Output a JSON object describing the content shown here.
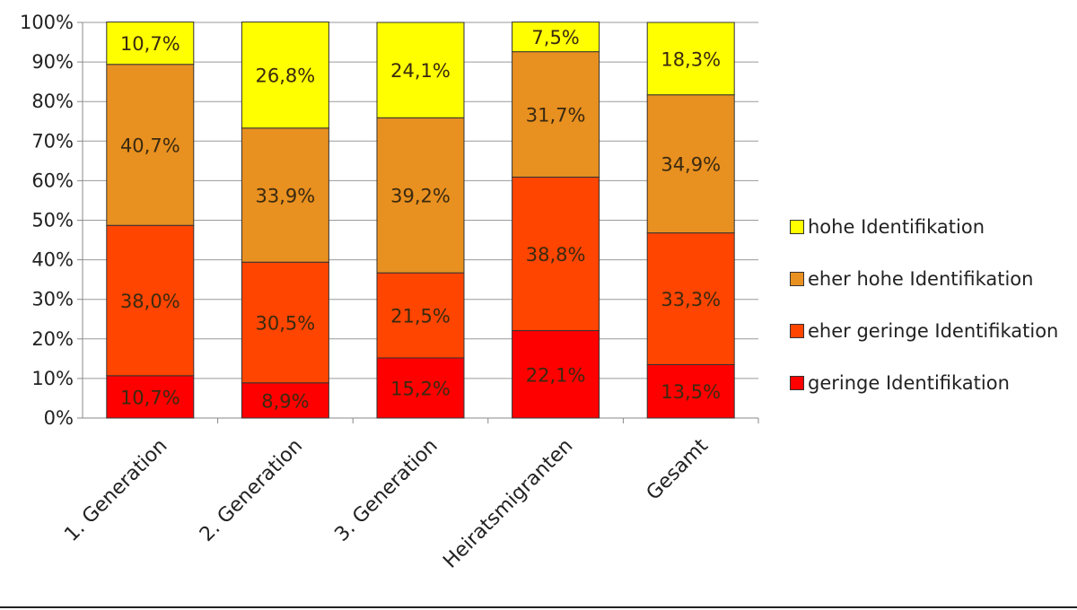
{
  "chart_data": {
    "type": "bar",
    "stacked": true,
    "categories": [
      "1. Generation",
      "2. Generation",
      "3.  Generation",
      "Heiratsmigranten",
      "Gesamt"
    ],
    "series": [
      {
        "name": "geringe Identifikation",
        "color": "#ff0000",
        "values": [
          10.7,
          8.9,
          15.2,
          22.1,
          13.5
        ],
        "labels": [
          "10,7%",
          "8,9%",
          "15,2%",
          "22,1%",
          "13,5%"
        ]
      },
      {
        "name": "eher geringe Identifikation",
        "color": "#ff4500",
        "values": [
          38.0,
          30.5,
          21.5,
          38.8,
          33.3
        ],
        "labels": [
          "38,0%",
          "30,5%",
          "21,5%",
          "38,8%",
          "33,3%"
        ]
      },
      {
        "name": "eher hohe Identifikation",
        "color": "#e89020",
        "values": [
          40.7,
          33.9,
          39.2,
          31.7,
          34.9
        ],
        "labels": [
          "40,7%",
          "33,9%",
          "39,2%",
          "31,7%",
          "34,9%"
        ]
      },
      {
        "name": "hohe Identifikation",
        "color": "#ffff00",
        "values": [
          10.7,
          26.8,
          24.1,
          7.5,
          18.3
        ],
        "labels": [
          "10,7%",
          "26,8%",
          "24,1%",
          "7,5%",
          "18,3%"
        ]
      }
    ],
    "y_ticks": [
      "0%",
      "10%",
      "20%",
      "30%",
      "40%",
      "50%",
      "60%",
      "70%",
      "80%",
      "90%",
      "100%"
    ],
    "ylim": [
      0,
      100
    ],
    "grid": true,
    "legend_position": "right",
    "legend_order": [
      "hohe Identifikation",
      "eher hohe Identifikation",
      "eher geringe Identifikation",
      "geringe Identifikation"
    ]
  }
}
